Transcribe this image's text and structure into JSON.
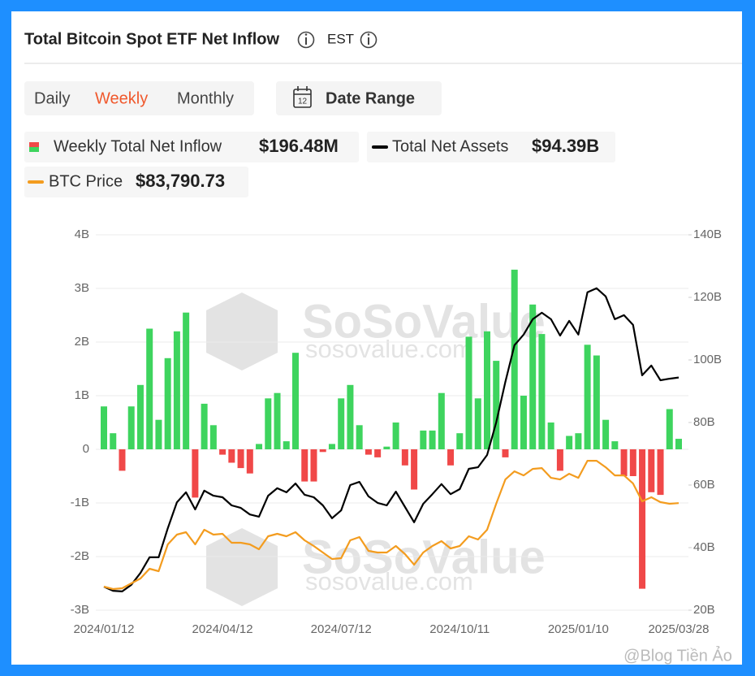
{
  "header": {
    "timezone": "EST"
  },
  "tabs": [
    "Daily",
    "Weekly",
    "Monthly"
  ],
  "active_tab": 1,
  "date_range": "Date Range",
  "legend_values": [
    "$196.48M",
    "$94.39B",
    "$83,790.73"
  ],
  "watermark": {
    "brand": "SoSoValue",
    "site": "sosovalue.com"
  },
  "credit": "@Blog Tiền Ảo",
  "chart_data": {
    "type": "bar",
    "title": "Total Bitcoin Spot ETF Net Inflow",
    "categories": [
      "2024/01/12",
      null,
      null,
      null,
      null,
      null,
      null,
      null,
      null,
      null,
      null,
      null,
      null,
      "2024/04/12",
      null,
      null,
      null,
      null,
      null,
      null,
      null,
      null,
      null,
      null,
      null,
      null,
      "2024/07/12",
      null,
      null,
      null,
      null,
      null,
      null,
      null,
      null,
      null,
      null,
      null,
      null,
      "2024/10/11",
      null,
      null,
      null,
      null,
      null,
      null,
      null,
      null,
      null,
      null,
      null,
      null,
      "2025/01/10",
      null,
      null,
      null,
      null,
      null,
      null,
      null,
      null,
      null,
      null,
      "2025/03/28"
    ],
    "ylim": [
      -3,
      4
    ],
    "yticks": [
      {
        "value": -3,
        "label": "-3B"
      },
      {
        "value": -2,
        "label": "-2B"
      },
      {
        "value": -1,
        "label": "-1B"
      },
      0,
      {
        "value": 1,
        "label": "1B"
      },
      {
        "value": 2,
        "label": "2B"
      },
      {
        "value": 3,
        "label": "3B"
      },
      {
        "value": 4,
        "label": "4B"
      }
    ],
    "y2lim": [
      20,
      140
    ],
    "y2ticks": [
      {
        "value": 20,
        "label": "20B"
      },
      {
        "value": 40,
        "label": "40B"
      },
      {
        "value": 60,
        "label": "60B"
      },
      {
        "value": 80,
        "label": "80B"
      },
      {
        "value": 100,
        "label": "100B"
      },
      {
        "value": 120,
        "label": "120B"
      },
      {
        "value": 140,
        "label": "140B"
      }
    ],
    "y3lim": [
      35000,
      206000
    ],
    "grid": true,
    "series": [
      {
        "name": "Weekly Total Net Inflow",
        "type": "bar",
        "axis": "y",
        "color": "#3ed45e",
        "negative_color": "#f04848",
        "values": [
          0.8,
          0.3,
          -0.4,
          0.8,
          1.2,
          2.25,
          0.55,
          1.7,
          2.2,
          2.55,
          -0.9,
          0.85,
          0.45,
          -0.1,
          -0.25,
          -0.35,
          -0.45,
          0.1,
          0.95,
          1.05,
          0.15,
          1.8,
          -0.6,
          -0.6,
          -0.05,
          0.1,
          0.95,
          1.2,
          0.45,
          -0.1,
          -0.15,
          0.05,
          0.5,
          -0.3,
          -0.75,
          0.35,
          0.35,
          1.05,
          -0.3,
          0.3,
          2.1,
          0.95,
          2.2,
          1.65,
          -0.15,
          3.35,
          1.0,
          2.7,
          2.15,
          0.5,
          -0.4,
          0.25,
          0.3,
          1.95,
          1.75,
          0.55,
          0.15,
          -0.5,
          -0.5,
          -2.6,
          -0.8,
          -0.85,
          0.75,
          0.196
        ]
      },
      {
        "name": "Total Net Assets",
        "type": "line",
        "axis": "y2",
        "color": "#000000",
        "values": [
          27.5,
          26.2,
          26.0,
          28.1,
          31.9,
          36.9,
          36.9,
          46.2,
          54.5,
          57.7,
          52.2,
          58.2,
          56.6,
          56.1,
          53.5,
          52.7,
          50.6,
          49.9,
          56.6,
          59.0,
          57.7,
          60.5,
          56.9,
          56.1,
          53.5,
          49.4,
          51.9,
          60.0,
          61.0,
          56.4,
          54.3,
          53.5,
          57.9,
          53.0,
          48.1,
          54.0,
          57.1,
          60.3,
          57.1,
          58.7,
          65.2,
          65.7,
          69.6,
          80.0,
          93.0,
          104.7,
          108.1,
          113.0,
          115.1,
          113.0,
          107.8,
          112.5,
          108.1,
          121.6,
          122.9,
          120.3,
          113.0,
          114.3,
          111.2,
          95.1,
          98.2,
          93.5,
          94.0,
          94.39
        ]
      },
      {
        "name": "BTC Price",
        "type": "line",
        "axis": "y3",
        "color": "#f39c1f",
        "values": [
          45730,
          44620,
          44990,
          47210,
          49430,
          53870,
          52760,
          64970,
          69410,
          70520,
          64970,
          71630,
          69410,
          69780,
          65710,
          65710,
          64970,
          62750,
          68670,
          69780,
          68670,
          70520,
          66820,
          64230,
          61270,
          58310,
          58680,
          66820,
          68300,
          62010,
          61270,
          61270,
          64230,
          60530,
          55720,
          61270,
          64230,
          66450,
          63120,
          64230,
          68670,
          67190,
          71630,
          83470,
          94570,
          98270,
          96420,
          99380,
          99750,
          95310,
          94570,
          97160,
          95310,
          103080,
          103080,
          100120,
          96420,
          96420,
          92720,
          84580,
          86430,
          84210,
          83470,
          83790.73
        ]
      }
    ]
  }
}
